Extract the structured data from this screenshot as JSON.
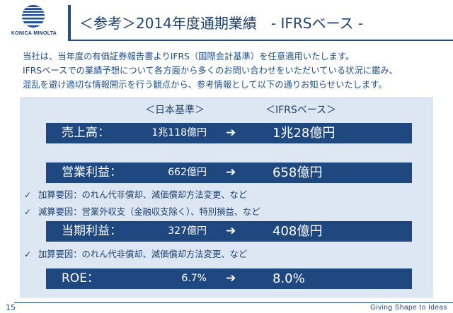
{
  "brand": {
    "logo_text": "KONICA MINOLTA",
    "tagline": "Giving Shape to Ideas",
    "accent": "#1f4880",
    "panel_bg": "#dce7f3"
  },
  "page_title": "＜参考＞2014年度通期業績　- IFRSベース -",
  "intro": [
    "当社は、当年度の有価証券報告書よりIFRS（国際会計基準）を任意適用いたします。",
    "IFRSベースでの業績予想について各方面から多くのお問い合わせをいただいている状況に鑑み、",
    "混乱を避け適切な情報開示を行う観点から、参考情報として以下の通りお知らせいたします。"
  ],
  "columns": {
    "jp": "＜日本基準＞",
    "ifrs": "＜IFRSベース＞"
  },
  "rows": [
    {
      "label": "売上高：",
      "jp": "1兆118億円",
      "arrow": "➔",
      "ifrs": "1兆28億円"
    },
    {
      "label": "営業利益：",
      "jp": "662億円",
      "arrow": "➔",
      "ifrs": "658億円"
    },
    {
      "label": "当期利益：",
      "jp": "327億円",
      "arrow": "➔",
      "ifrs": "408億円"
    },
    {
      "label": "ROE：",
      "jp": "6.7%",
      "arrow": "➔",
      "ifrs": "8.0%"
    }
  ],
  "notes": [
    {
      "check": "✓",
      "text": "加算要因：のれん代非償却、減価償却方法変更、など"
    },
    {
      "check": "✓",
      "text": "減算要因：営業外収支（金融収支除く）、特別損益、など"
    },
    {
      "check": "✓",
      "text": "加算要因：のれん代非償却、減価償却方法変更、など"
    }
  ],
  "page_number": "15"
}
